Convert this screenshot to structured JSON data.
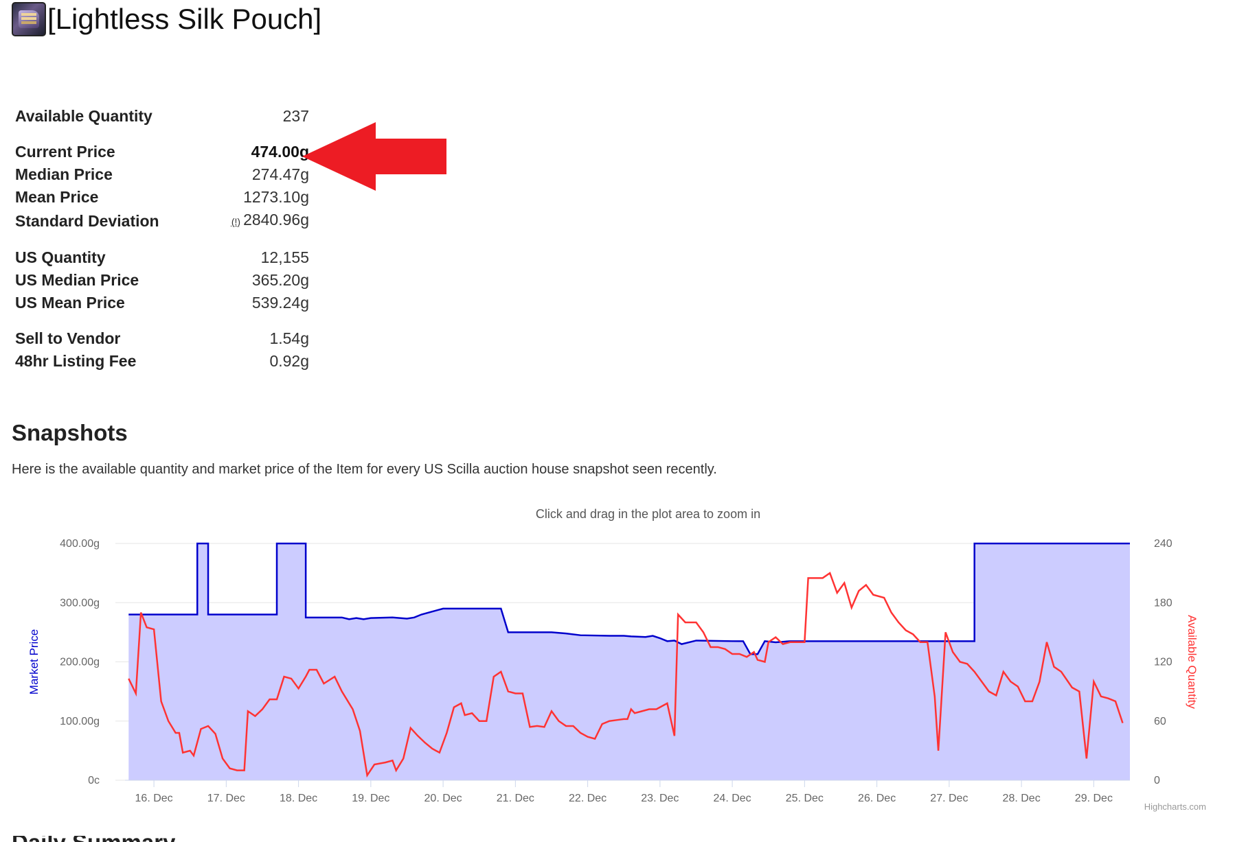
{
  "item": {
    "name": "[Lightless Silk Pouch]",
    "icon": "silk-pouch-icon"
  },
  "stats": [
    {
      "label": "Available Quantity",
      "value": "237"
    },
    {
      "label": "Current Price",
      "value": "474.00g",
      "bold": true
    },
    {
      "label": "Median Price",
      "value": "274.47g"
    },
    {
      "label": "Mean Price",
      "value": "1273.10g"
    },
    {
      "label": "Standard Deviation",
      "value": "2840.96g",
      "warning": "(!)"
    },
    {
      "label": "US Quantity",
      "value": "12,155"
    },
    {
      "label": "US Median Price",
      "value": "365.20g"
    },
    {
      "label": "US Mean Price",
      "value": "539.24g"
    },
    {
      "label": "Sell to Vendor",
      "value": "1.54g"
    },
    {
      "label": "48hr Listing Fee",
      "value": "0.92g"
    }
  ],
  "annotation": {
    "arrow_color": "#ed1c24",
    "points_to": "Current Price"
  },
  "snapshots": {
    "heading": "Snapshots",
    "description": "Here is the available quantity and market price of the Item for every US Scilla auction house snapshot seen recently.",
    "next_heading": "Daily Summary"
  },
  "chart_data": {
    "type": "line",
    "subtitle": "Click and drag in the plot area to zoom in",
    "credits": "Highcharts.com",
    "x_categories": [
      "16. Dec",
      "17. Dec",
      "18. Dec",
      "19. Dec",
      "20. Dec",
      "21. Dec",
      "22. Dec",
      "23. Dec",
      "24. Dec",
      "25. Dec",
      "26. Dec",
      "27. Dec",
      "28. Dec",
      "29. Dec"
    ],
    "x_range": [
      15.6,
      29.5
    ],
    "y_left": {
      "label": "Market Price",
      "color": "#0000cc",
      "ticks": [
        "0c",
        "100.00g",
        "200.00g",
        "300.00g",
        "400.00g"
      ],
      "range": [
        0,
        400
      ]
    },
    "y_right": {
      "label": "Available Quantity",
      "color": "#ff3333",
      "ticks": [
        "0",
        "60",
        "120",
        "180",
        "240"
      ],
      "range": [
        0,
        240
      ]
    },
    "grid": true,
    "series": [
      {
        "name": "Market Price",
        "color": "#0000cc",
        "area_fill": "#ccccff",
        "points": [
          [
            15.65,
            280
          ],
          [
            16.6,
            280
          ],
          [
            16.6,
            400
          ],
          [
            16.75,
            400
          ],
          [
            16.75,
            280
          ],
          [
            17.7,
            280
          ],
          [
            17.7,
            400
          ],
          [
            18.1,
            400
          ],
          [
            18.1,
            275
          ],
          [
            18.6,
            275
          ],
          [
            18.7,
            272
          ],
          [
            18.8,
            274
          ],
          [
            18.9,
            272
          ],
          [
            19.0,
            274
          ],
          [
            19.3,
            275
          ],
          [
            19.5,
            273
          ],
          [
            19.6,
            275
          ],
          [
            19.7,
            280
          ],
          [
            20.0,
            290
          ],
          [
            20.3,
            290
          ],
          [
            20.8,
            290
          ],
          [
            20.9,
            250
          ],
          [
            21.2,
            250
          ],
          [
            21.5,
            250
          ],
          [
            21.7,
            248
          ],
          [
            21.9,
            245
          ],
          [
            22.3,
            244
          ],
          [
            22.5,
            244
          ],
          [
            22.6,
            243
          ],
          [
            22.8,
            242
          ],
          [
            22.9,
            244
          ],
          [
            23.0,
            240
          ],
          [
            23.1,
            235
          ],
          [
            23.2,
            236
          ],
          [
            23.3,
            230
          ],
          [
            23.5,
            236
          ],
          [
            24.0,
            235
          ],
          [
            24.15,
            235
          ],
          [
            24.25,
            213
          ],
          [
            24.35,
            213
          ],
          [
            24.45,
            235
          ],
          [
            24.6,
            233
          ],
          [
            24.8,
            235
          ],
          [
            25.5,
            235
          ],
          [
            26.5,
            235
          ],
          [
            27.35,
            235
          ],
          [
            27.35,
            400
          ],
          [
            29.5,
            400
          ]
        ]
      },
      {
        "name": "Available Quantity",
        "color": "#ff3333",
        "points": [
          [
            15.65,
            103
          ],
          [
            15.75,
            88
          ],
          [
            15.82,
            170
          ],
          [
            15.9,
            155
          ],
          [
            16.0,
            153
          ],
          [
            16.1,
            80
          ],
          [
            16.2,
            60
          ],
          [
            16.3,
            48
          ],
          [
            16.35,
            48
          ],
          [
            16.4,
            28
          ],
          [
            16.5,
            30
          ],
          [
            16.55,
            25
          ],
          [
            16.65,
            52
          ],
          [
            16.75,
            55
          ],
          [
            16.85,
            47
          ],
          [
            16.95,
            22
          ],
          [
            17.05,
            12
          ],
          [
            17.15,
            10
          ],
          [
            17.25,
            10
          ],
          [
            17.3,
            70
          ],
          [
            17.4,
            65
          ],
          [
            17.5,
            72
          ],
          [
            17.6,
            82
          ],
          [
            17.7,
            82
          ],
          [
            17.8,
            105
          ],
          [
            17.9,
            103
          ],
          [
            18.0,
            93
          ],
          [
            18.1,
            105
          ],
          [
            18.15,
            112
          ],
          [
            18.25,
            112
          ],
          [
            18.35,
            98
          ],
          [
            18.5,
            105
          ],
          [
            18.6,
            90
          ],
          [
            18.75,
            72
          ],
          [
            18.85,
            50
          ],
          [
            18.95,
            5
          ],
          [
            19.05,
            16
          ],
          [
            19.2,
            18
          ],
          [
            19.3,
            20
          ],
          [
            19.35,
            10
          ],
          [
            19.45,
            22
          ],
          [
            19.55,
            53
          ],
          [
            19.65,
            45
          ],
          [
            19.75,
            38
          ],
          [
            19.85,
            32
          ],
          [
            19.95,
            28
          ],
          [
            20.05,
            48
          ],
          [
            20.15,
            74
          ],
          [
            20.25,
            78
          ],
          [
            20.3,
            66
          ],
          [
            20.4,
            68
          ],
          [
            20.5,
            60
          ],
          [
            20.6,
            60
          ],
          [
            20.7,
            105
          ],
          [
            20.8,
            110
          ],
          [
            20.9,
            90
          ],
          [
            21.0,
            88
          ],
          [
            21.1,
            88
          ],
          [
            21.2,
            54
          ],
          [
            21.3,
            55
          ],
          [
            21.4,
            54
          ],
          [
            21.5,
            70
          ],
          [
            21.6,
            60
          ],
          [
            21.7,
            55
          ],
          [
            21.8,
            55
          ],
          [
            21.9,
            48
          ],
          [
            22.0,
            44
          ],
          [
            22.1,
            42
          ],
          [
            22.2,
            57
          ],
          [
            22.3,
            60
          ],
          [
            22.4,
            61
          ],
          [
            22.5,
            62
          ],
          [
            22.55,
            62
          ],
          [
            22.6,
            72
          ],
          [
            22.65,
            68
          ],
          [
            22.75,
            70
          ],
          [
            22.85,
            72
          ],
          [
            22.95,
            72
          ],
          [
            23.05,
            76
          ],
          [
            23.1,
            78
          ],
          [
            23.2,
            45
          ],
          [
            23.25,
            168
          ],
          [
            23.35,
            160
          ],
          [
            23.5,
            160
          ],
          [
            23.6,
            150
          ],
          [
            23.7,
            135
          ],
          [
            23.8,
            135
          ],
          [
            23.9,
            133
          ],
          [
            24.0,
            128
          ],
          [
            24.1,
            128
          ],
          [
            24.2,
            125
          ],
          [
            24.3,
            130
          ],
          [
            24.35,
            122
          ],
          [
            24.45,
            120
          ],
          [
            24.5,
            140
          ],
          [
            24.6,
            145
          ],
          [
            24.7,
            138
          ],
          [
            24.8,
            140
          ],
          [
            24.9,
            140
          ],
          [
            25.0,
            140
          ],
          [
            25.05,
            205
          ],
          [
            25.15,
            205
          ],
          [
            25.25,
            205
          ],
          [
            25.35,
            210
          ],
          [
            25.45,
            190
          ],
          [
            25.55,
            200
          ],
          [
            25.65,
            175
          ],
          [
            25.75,
            192
          ],
          [
            25.85,
            198
          ],
          [
            25.95,
            188
          ],
          [
            26.1,
            185
          ],
          [
            26.2,
            170
          ],
          [
            26.3,
            160
          ],
          [
            26.4,
            152
          ],
          [
            26.5,
            148
          ],
          [
            26.6,
            140
          ],
          [
            26.7,
            140
          ],
          [
            26.8,
            85
          ],
          [
            26.85,
            30
          ],
          [
            26.95,
            150
          ],
          [
            27.05,
            130
          ],
          [
            27.15,
            120
          ],
          [
            27.25,
            118
          ],
          [
            27.35,
            110
          ],
          [
            27.45,
            100
          ],
          [
            27.55,
            90
          ],
          [
            27.65,
            86
          ],
          [
            27.75,
            110
          ],
          [
            27.85,
            100
          ],
          [
            27.95,
            95
          ],
          [
            28.05,
            80
          ],
          [
            28.15,
            80
          ],
          [
            28.25,
            100
          ],
          [
            28.35,
            140
          ],
          [
            28.45,
            115
          ],
          [
            28.55,
            110
          ],
          [
            28.7,
            94
          ],
          [
            28.8,
            90
          ],
          [
            28.9,
            22
          ],
          [
            29.0,
            100
          ],
          [
            29.1,
            85
          ],
          [
            29.2,
            83
          ],
          [
            29.3,
            80
          ],
          [
            29.4,
            58
          ]
        ]
      }
    ]
  }
}
